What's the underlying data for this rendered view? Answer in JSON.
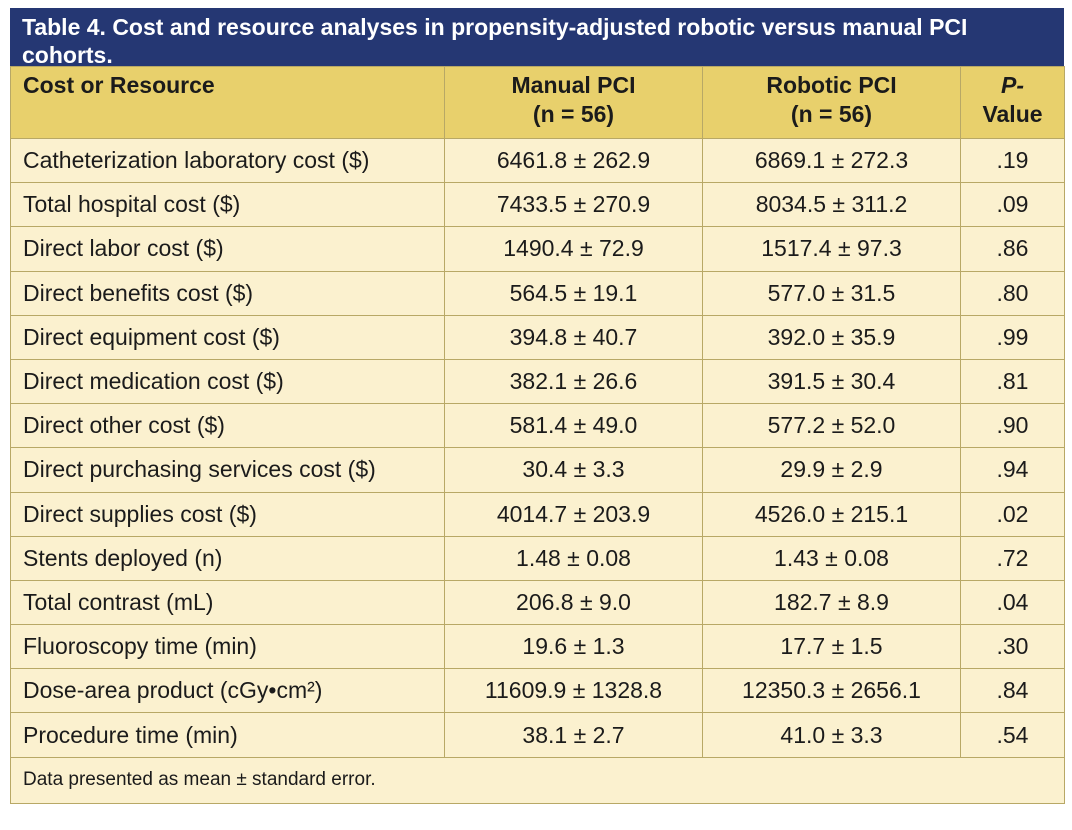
{
  "table": {
    "title": "Table 4. Cost and resource analyses in propensity-adjusted robotic versus manual PCI cohorts.",
    "headers": {
      "col1": "Cost or Resource",
      "col2_line1": "Manual PCI",
      "col2_line2": "(n = 56)",
      "col3_line1": "Robotic PCI",
      "col3_line2": "(n = 56)",
      "col4_line1": "P-",
      "col4_line2": "Value"
    },
    "rows": [
      {
        "label": "Catheterization laboratory cost ($)",
        "manual": "6461.8 ± 262.9",
        "robotic": "6869.1 ± 272.3",
        "p": ".19"
      },
      {
        "label": "Total hospital cost ($)",
        "manual": "7433.5 ± 270.9",
        "robotic": "8034.5 ± 311.2",
        "p": ".09"
      },
      {
        "label": "Direct labor cost ($)",
        "manual": "1490.4 ± 72.9",
        "robotic": "1517.4 ± 97.3",
        "p": ".86"
      },
      {
        "label": "Direct benefits cost ($)",
        "manual": "564.5 ± 19.1",
        "robotic": "577.0 ± 31.5",
        "p": ".80"
      },
      {
        "label": "Direct equipment cost ($)",
        "manual": "394.8 ± 40.7",
        "robotic": "392.0 ± 35.9",
        "p": ".99"
      },
      {
        "label": "Direct medication cost ($)",
        "manual": "382.1 ± 26.6",
        "robotic": "391.5 ± 30.4",
        "p": ".81"
      },
      {
        "label": "Direct other cost ($)",
        "manual": "581.4 ± 49.0",
        "robotic": "577.2 ± 52.0",
        "p": ".90"
      },
      {
        "label": "Direct purchasing services cost ($)",
        "manual": "30.4 ± 3.3",
        "robotic": "29.9 ± 2.9",
        "p": ".94"
      },
      {
        "label": "Direct supplies cost ($)",
        "manual": "4014.7 ± 203.9",
        "robotic": "4526.0 ± 215.1",
        "p": ".02"
      },
      {
        "label": "Stents deployed (n)",
        "manual": "1.48 ± 0.08",
        "robotic": "1.43 ± 0.08",
        "p": ".72"
      },
      {
        "label": "Total contrast (mL)",
        "manual": "206.8 ± 9.0",
        "robotic": "182.7 ± 8.9",
        "p": ".04"
      },
      {
        "label": "Fluoroscopy time (min)",
        "manual": "19.6 ± 1.3",
        "robotic": "17.7 ± 1.5",
        "p": ".30"
      },
      {
        "label": "Dose-area product (cGy•cm²)",
        "manual": "11609.9 ± 1328.8",
        "robotic": "12350.3 ± 2656.1",
        "p": ".84"
      },
      {
        "label": "Procedure time (min)",
        "manual": "38.1 ± 2.7",
        "robotic": "41.0 ± 3.3",
        "p": ".54"
      }
    ],
    "footnote": "Data presented as mean ± standard error."
  },
  "colors": {
    "title_bg": "#253773",
    "header_bg": "#e8d06c",
    "body_bg": "#fbf1cf",
    "border": "#b8a866"
  }
}
